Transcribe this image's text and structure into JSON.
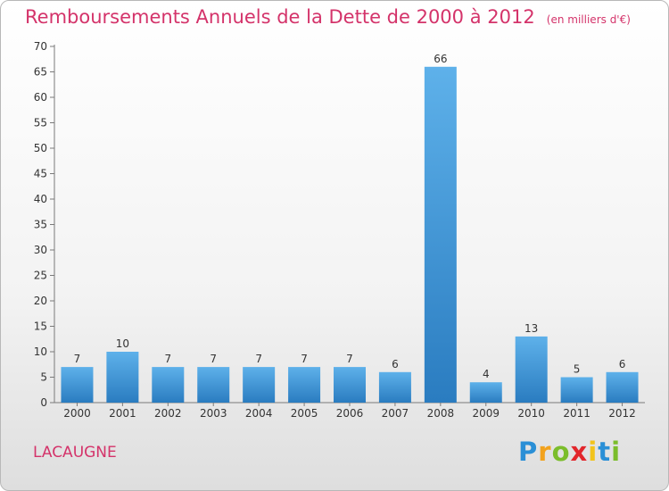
{
  "chart_data": {
    "type": "bar",
    "title": "Remboursements Annuels de la Dette de 2000 à 2012",
    "subtitle": "(en milliers d'€)",
    "categories": [
      "2000",
      "2001",
      "2002",
      "2003",
      "2004",
      "2005",
      "2006",
      "2007",
      "2008",
      "2009",
      "2010",
      "2011",
      "2012"
    ],
    "values": [
      7,
      10,
      7,
      7,
      7,
      7,
      7,
      6,
      66,
      4,
      13,
      5,
      6
    ],
    "data_labels": [
      "7",
      "10",
      "7",
      "7",
      "7",
      "7",
      "7",
      "6",
      "66",
      "4",
      "13",
      "5",
      "6"
    ],
    "yticks": [
      "0",
      "5",
      "10",
      "15",
      "20",
      "25",
      "30",
      "35",
      "40",
      "45",
      "50",
      "55",
      "60",
      "65",
      "70"
    ],
    "ylim": [
      0,
      70
    ],
    "ystep": 5,
    "grid": false,
    "legend": "none",
    "bar_color": "#3f8fd0",
    "axis_color": "#7a7a7a"
  },
  "footer": {
    "commune": "LACAUGNE",
    "logo": {
      "letters": [
        "P",
        "r",
        "o",
        "x",
        "i",
        "t",
        "i"
      ],
      "colors": [
        "#2a8fd6",
        "#f2a21d",
        "#7bbd2b",
        "#e2262b",
        "#f2c31b",
        "#2a8fd6",
        "#7bbd2b"
      ]
    }
  },
  "colors": {
    "title": "#d4336a"
  }
}
